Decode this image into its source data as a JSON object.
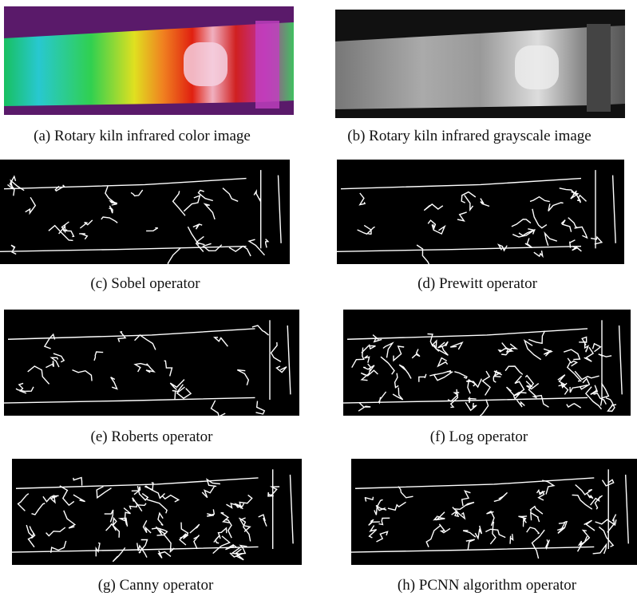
{
  "figure": {
    "panels": [
      {
        "caption": "(a) Rotary kiln infrared color image"
      },
      {
        "caption": "(b) Rotary kiln infrared grayscale image"
      },
      {
        "caption": "(c) Sobel operator"
      },
      {
        "caption": "(d) Prewitt operator"
      },
      {
        "caption": "(e) Roberts operator"
      },
      {
        "caption": "(f) Log operator"
      },
      {
        "caption": "(g) Canny operator"
      },
      {
        "caption": "(h) PCNN algorithm operator"
      }
    ]
  }
}
